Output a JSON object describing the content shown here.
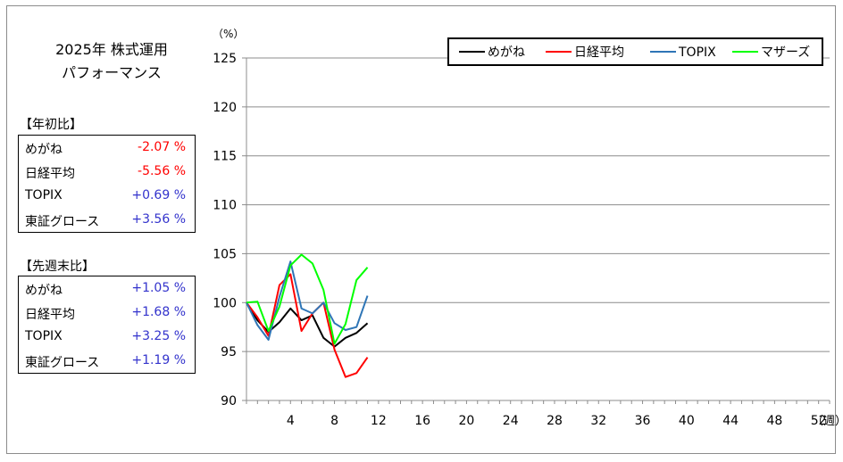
{
  "title": {
    "line1": "2025年  株式運用",
    "line2": "パフォーマンス"
  },
  "ytd": {
    "header": "【年初比】",
    "rows": [
      {
        "name": "めがね",
        "value": "-2.07 %",
        "sign": "neg"
      },
      {
        "name": "日経平均",
        "value": "-5.56 %",
        "sign": "neg"
      },
      {
        "name": "TOPIX",
        "value": "+0.69 %",
        "sign": "pos"
      },
      {
        "name": "東証グロース",
        "value": "+3.56 %",
        "sign": "pos"
      }
    ]
  },
  "wow": {
    "header": "【先週末比】",
    "rows": [
      {
        "name": "めがね",
        "value": "+1.05 %",
        "sign": "pos"
      },
      {
        "name": "日経平均",
        "value": "+1.68 %",
        "sign": "pos"
      },
      {
        "name": "TOPIX",
        "value": "+3.25 %",
        "sign": "pos"
      },
      {
        "name": "東証グロース",
        "value": "+1.19 %",
        "sign": "pos"
      }
    ]
  },
  "chart_data": {
    "type": "line",
    "y_unit": "（%）",
    "x_unit": "（週）",
    "xlim": [
      0,
      53
    ],
    "ylim": [
      90,
      125
    ],
    "x_ticks": [
      4,
      8,
      12,
      16,
      20,
      24,
      28,
      32,
      36,
      40,
      44,
      48,
      52
    ],
    "y_ticks": [
      90,
      95,
      100,
      105,
      110,
      115,
      120,
      125
    ],
    "grid": true,
    "legend_position": "top-right",
    "x": [
      0,
      1,
      2,
      3,
      4,
      5,
      6,
      7,
      8,
      9,
      10,
      11
    ],
    "series": [
      {
        "name": "めがね",
        "color": "#000000",
        "values": [
          100,
          98.2,
          97.0,
          98.0,
          99.4,
          98.2,
          98.7,
          96.4,
          95.5,
          96.4,
          96.9,
          97.9
        ]
      },
      {
        "name": "日経平均",
        "color": "#ff0000",
        "values": [
          100,
          98.5,
          96.6,
          101.8,
          102.9,
          97.1,
          98.9,
          100.0,
          95.2,
          92.4,
          92.8,
          94.4
        ]
      },
      {
        "name": "TOPIX",
        "color": "#2e75b6",
        "values": [
          100,
          97.7,
          96.2,
          100.6,
          104.2,
          99.4,
          98.9,
          100.0,
          97.9,
          97.2,
          97.5,
          100.7
        ]
      },
      {
        "name": "マザーズ",
        "color": "#00ff00",
        "values": [
          100,
          100.1,
          97.1,
          99.6,
          103.8,
          104.9,
          104.0,
          101.3,
          95.8,
          97.8,
          102.3,
          103.6
        ]
      }
    ]
  }
}
